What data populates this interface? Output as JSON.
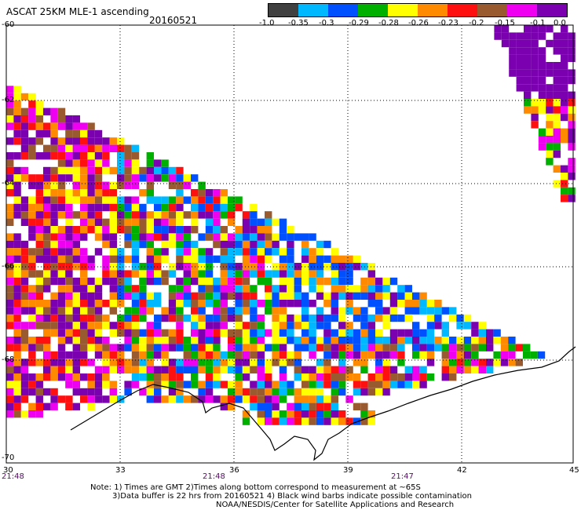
{
  "header": {
    "title": "ASCAT 25KM MLE-1 ascending",
    "date": "20160521"
  },
  "colorbar": {
    "colors": [
      "#404040",
      "#00b8ff",
      "#0050ff",
      "#00b000",
      "#ffff00",
      "#ff8a00",
      "#ff1010",
      "#9a5a30",
      "#f000f0",
      "#7a00b0"
    ],
    "labels": [
      "-1.0",
      "-0.35",
      "-0.3",
      "-0.29",
      "-0.28",
      "-0.26",
      "-0.23",
      "-0.2",
      "-0.15",
      "-0.1",
      "0.0"
    ]
  },
  "axes": {
    "lat_labels": [
      "-60",
      "-62",
      "-64",
      "-66",
      "-68",
      "-70"
    ],
    "lon_labels": [
      "30",
      "33",
      "36",
      "39",
      "42",
      "45"
    ],
    "time_labels": [
      "21:48",
      "21:48",
      "21:47"
    ]
  },
  "notes": [
    "Note: 1) Times are GMT 2)Times along bottom correspond to measurement at ~65S",
    "3)Data buffer is 22 hrs from 20160521 4) Black wind barbs indicate possible contamination",
    "NOAA/NESDIS/Center for Satellite Applications and Research"
  ]
}
